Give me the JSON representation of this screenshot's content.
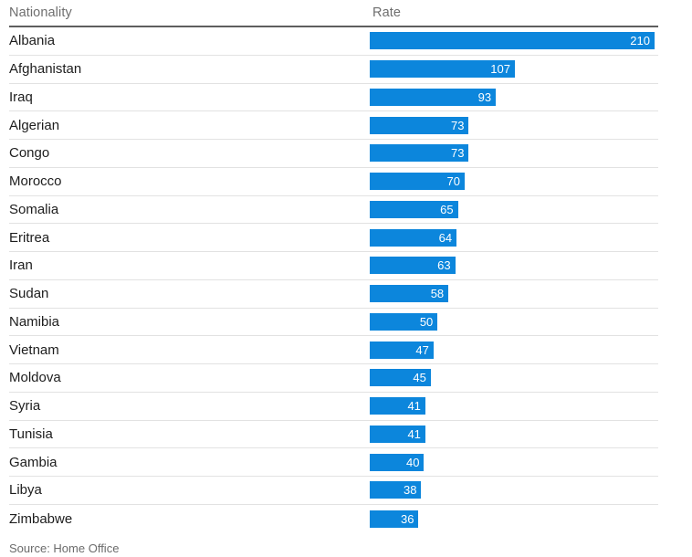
{
  "table": {
    "headers": {
      "nationality": "Nationality",
      "rate": "Rate"
    }
  },
  "source": "Source: Home Office",
  "colors": {
    "bar": "#0c86dc",
    "value_text": "#ffffff",
    "header_text": "#6e6e6e",
    "row_text": "#1d1d1d",
    "header_divider": "#5e5e5e",
    "row_divider": "#e2e2e2"
  },
  "chart_data": {
    "type": "bar",
    "orientation": "horizontal",
    "title": "",
    "xlabel": "Rate",
    "ylabel": "Nationality",
    "xlim": [
      0,
      210
    ],
    "grid": false,
    "legend": "none",
    "value_labels": "inside-end",
    "categories": [
      "Albania",
      "Afghanistan",
      "Iraq",
      "Algerian",
      "Congo",
      "Morocco",
      "Somalia",
      "Eritrea",
      "Iran",
      "Sudan",
      "Namibia",
      "Vietnam",
      "Moldova",
      "Syria",
      "Tunisia",
      "Gambia",
      "Libya",
      "Zimbabwe"
    ],
    "values": [
      210,
      107,
      93,
      73,
      73,
      70,
      65,
      64,
      63,
      58,
      50,
      47,
      45,
      41,
      41,
      40,
      38,
      36
    ],
    "source": "Source: Home Office"
  }
}
